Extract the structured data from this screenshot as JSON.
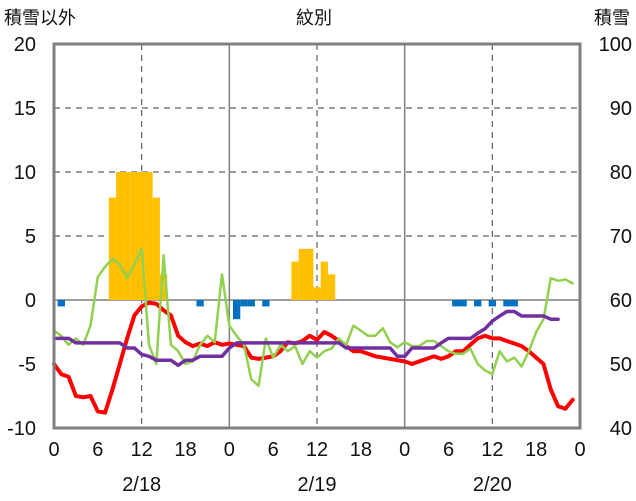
{
  "chart_data": {
    "type": "bar+line",
    "title": "紋別",
    "ylabel_left": "積雪以外",
    "ylabel_right": "積雪",
    "ylim_left": [
      -10,
      20
    ],
    "ylim_right": [
      40,
      100
    ],
    "left_ticks": [
      "20",
      "15",
      "10",
      "5",
      "0",
      "-5",
      "-10"
    ],
    "right_ticks": [
      "100",
      "90",
      "80",
      "70",
      "60",
      "50",
      "40"
    ],
    "x_range_hours": [
      0,
      72
    ],
    "x_tick_hours": [
      0,
      6,
      12,
      18,
      24,
      30,
      36,
      42,
      48,
      54,
      60,
      66,
      72
    ],
    "x_tick_labels": [
      "0",
      "6",
      "12",
      "18",
      "0",
      "6",
      "12",
      "18",
      "0",
      "6",
      "12",
      "18",
      "0"
    ],
    "day_labels": [
      {
        "hour": 12,
        "label": "2/18"
      },
      {
        "hour": 36,
        "label": "2/19"
      },
      {
        "hour": 60,
        "label": "2/20"
      }
    ],
    "day_boundaries": [
      24,
      48
    ],
    "dashed_x_hours": [
      12,
      36,
      60
    ],
    "dashed_y_values": [
      5,
      10,
      15
    ],
    "series": [
      {
        "name": "snowfall",
        "kind": "bar",
        "axis": "left",
        "color": "#ffc000",
        "points": [
          [
            8,
            8
          ],
          [
            9,
            10
          ],
          [
            10,
            10
          ],
          [
            11,
            10
          ],
          [
            12,
            10
          ],
          [
            13,
            10
          ],
          [
            14,
            8
          ],
          [
            15,
            2
          ],
          [
            33,
            3
          ],
          [
            34,
            4
          ],
          [
            35,
            4
          ],
          [
            36,
            1
          ],
          [
            37,
            3
          ],
          [
            38,
            2
          ]
        ]
      },
      {
        "name": "precipitation",
        "kind": "bar",
        "axis": "left",
        "color": "#0070c0",
        "points": [
          [
            1,
            -0.5
          ],
          [
            20,
            -0.5
          ],
          [
            25,
            -1.5
          ],
          [
            26,
            -0.5
          ],
          [
            27,
            -0.5
          ],
          [
            29,
            -0.5
          ],
          [
            55,
            -0.5
          ],
          [
            56,
            -0.5
          ],
          [
            58,
            -0.5
          ],
          [
            60,
            -0.5
          ],
          [
            62,
            -0.5
          ],
          [
            63,
            -0.5
          ]
        ]
      },
      {
        "name": "temperature",
        "kind": "line",
        "axis": "left",
        "color": "#ff0000",
        "points": [
          [
            0,
            -5
          ],
          [
            1,
            -5.8
          ],
          [
            2,
            -6
          ],
          [
            3,
            -7.5
          ],
          [
            4,
            -7.6
          ],
          [
            5,
            -7.5
          ],
          [
            6,
            -8.7
          ],
          [
            7,
            -8.8
          ],
          [
            8,
            -7
          ],
          [
            9,
            -5
          ],
          [
            10,
            -3
          ],
          [
            11,
            -1.2
          ],
          [
            12,
            -0.5
          ],
          [
            13,
            -0.2
          ],
          [
            14,
            -0.3
          ],
          [
            15,
            -0.8
          ],
          [
            16,
            -1.2
          ],
          [
            17,
            -2.8
          ],
          [
            18,
            -3.3
          ],
          [
            19,
            -3.6
          ],
          [
            20,
            -3.4
          ],
          [
            21,
            -3.6
          ],
          [
            22,
            -3.3
          ],
          [
            23,
            -3.5
          ],
          [
            24,
            -3.4
          ],
          [
            25,
            -3.5
          ],
          [
            26,
            -3.6
          ],
          [
            27,
            -4.5
          ],
          [
            28,
            -4.6
          ],
          [
            29,
            -4.5
          ],
          [
            30,
            -4.4
          ],
          [
            31,
            -4
          ],
          [
            32,
            -3.3
          ],
          [
            33,
            -3.4
          ],
          [
            34,
            -3.2
          ],
          [
            35,
            -2.8
          ],
          [
            36,
            -3.1
          ],
          [
            37,
            -2.5
          ],
          [
            38,
            -2.8
          ],
          [
            39,
            -3.2
          ],
          [
            40,
            -3.6
          ],
          [
            41,
            -4
          ],
          [
            42,
            -4
          ],
          [
            43,
            -4.2
          ],
          [
            44,
            -4.4
          ],
          [
            45,
            -4.5
          ],
          [
            46,
            -4.6
          ],
          [
            47,
            -4.7
          ],
          [
            48,
            -4.8
          ],
          [
            49,
            -5
          ],
          [
            50,
            -4.8
          ],
          [
            51,
            -4.6
          ],
          [
            52,
            -4.4
          ],
          [
            53,
            -4.6
          ],
          [
            54,
            -4.4
          ],
          [
            55,
            -4
          ],
          [
            56,
            -4
          ],
          [
            57,
            -3.5
          ],
          [
            58,
            -3
          ],
          [
            59,
            -2.8
          ],
          [
            60,
            -3
          ],
          [
            61,
            -3
          ],
          [
            62,
            -3.2
          ],
          [
            63,
            -3.4
          ],
          [
            64,
            -3.6
          ],
          [
            65,
            -4
          ],
          [
            66,
            -4.5
          ],
          [
            67,
            -5
          ],
          [
            68,
            -7
          ],
          [
            69,
            -8.3
          ],
          [
            70,
            -8.5
          ],
          [
            71,
            -7.8
          ]
        ]
      },
      {
        "name": "wind",
        "kind": "line",
        "axis": "left",
        "color": "#92d050",
        "points": [
          [
            0,
            -2.4
          ],
          [
            1,
            -2.8
          ],
          [
            2,
            -3.5
          ],
          [
            3,
            -3
          ],
          [
            4,
            -3.5
          ],
          [
            5,
            -2
          ],
          [
            6,
            1.8
          ],
          [
            7,
            2.6
          ],
          [
            8,
            3.2
          ],
          [
            9,
            2.8
          ],
          [
            10,
            1.7
          ],
          [
            11,
            2.8
          ],
          [
            12,
            4
          ],
          [
            13,
            -3.5
          ],
          [
            14,
            -5
          ],
          [
            15,
            3.5
          ],
          [
            16,
            -3.5
          ],
          [
            17,
            -4
          ],
          [
            18,
            -5
          ],
          [
            19,
            -4.8
          ],
          [
            20,
            -3.5
          ],
          [
            21,
            -2.8
          ],
          [
            22,
            -3.3
          ],
          [
            23,
            2
          ],
          [
            24,
            -2
          ],
          [
            25,
            -2.8
          ],
          [
            26,
            -3.5
          ],
          [
            27,
            -6.2
          ],
          [
            28,
            -6.7
          ],
          [
            29,
            -3
          ],
          [
            30,
            -4.5
          ],
          [
            31,
            -3.5
          ],
          [
            32,
            -4
          ],
          [
            33,
            -3.6
          ],
          [
            34,
            -5
          ],
          [
            35,
            -4
          ],
          [
            36,
            -4.5
          ],
          [
            37,
            -4
          ],
          [
            38,
            -3.8
          ],
          [
            39,
            -3
          ],
          [
            40,
            -3.5
          ],
          [
            41,
            -2
          ],
          [
            42,
            -2.4
          ],
          [
            43,
            -2.8
          ],
          [
            44,
            -2.8
          ],
          [
            45,
            -2.2
          ],
          [
            46,
            -3.3
          ],
          [
            47,
            -3.7
          ],
          [
            48,
            -3.3
          ],
          [
            49,
            -3.6
          ],
          [
            50,
            -3.6
          ],
          [
            51,
            -3.2
          ],
          [
            52,
            -3.2
          ],
          [
            53,
            -3.6
          ],
          [
            54,
            -4
          ],
          [
            55,
            -4.2
          ],
          [
            56,
            -4.2
          ],
          [
            57,
            -3.8
          ],
          [
            58,
            -5
          ],
          [
            59,
            -5.5
          ],
          [
            60,
            -5.8
          ],
          [
            61,
            -4
          ],
          [
            62,
            -4.8
          ],
          [
            63,
            -4.5
          ],
          [
            64,
            -5.2
          ],
          [
            65,
            -4
          ],
          [
            66,
            -2.5
          ],
          [
            67,
            -1.5
          ],
          [
            68,
            1.7
          ],
          [
            69,
            1.5
          ],
          [
            70,
            1.6
          ],
          [
            71,
            1.3
          ]
        ]
      },
      {
        "name": "snow_depth",
        "kind": "line",
        "axis": "right",
        "color": "#7030a0",
        "points": [
          [
            0,
            54
          ],
          [
            1,
            54
          ],
          [
            2,
            54
          ],
          [
            3,
            53.3
          ],
          [
            4,
            53.3
          ],
          [
            5,
            53.3
          ],
          [
            6,
            53.3
          ],
          [
            7,
            53.3
          ],
          [
            8,
            53.3
          ],
          [
            9,
            53.3
          ],
          [
            10,
            52.5
          ],
          [
            11,
            52.5
          ],
          [
            12,
            51.5
          ],
          [
            13,
            51.2
          ],
          [
            14,
            50.6
          ],
          [
            15,
            50.6
          ],
          [
            16,
            50.6
          ],
          [
            17,
            49.8
          ],
          [
            18,
            50.6
          ],
          [
            19,
            50.6
          ],
          [
            20,
            51.2
          ],
          [
            21,
            51.2
          ],
          [
            22,
            51.2
          ],
          [
            23,
            51.2
          ],
          [
            24,
            52.5
          ],
          [
            25,
            53.3
          ],
          [
            26,
            53.3
          ],
          [
            27,
            53.3
          ],
          [
            28,
            53.3
          ],
          [
            29,
            53.3
          ],
          [
            30,
            53.3
          ],
          [
            31,
            53.3
          ],
          [
            32,
            53.3
          ],
          [
            33,
            53.3
          ],
          [
            34,
            53.3
          ],
          [
            35,
            53.3
          ],
          [
            36,
            53.3
          ],
          [
            37,
            53.3
          ],
          [
            38,
            53.3
          ],
          [
            39,
            53.3
          ],
          [
            40,
            52.5
          ],
          [
            41,
            52.5
          ],
          [
            42,
            52.5
          ],
          [
            43,
            52.5
          ],
          [
            44,
            52.5
          ],
          [
            45,
            52.5
          ],
          [
            46,
            52.5
          ],
          [
            47,
            51.2
          ],
          [
            48,
            51.2
          ],
          [
            49,
            52.5
          ],
          [
            50,
            52.5
          ],
          [
            51,
            52.5
          ],
          [
            52,
            52.5
          ],
          [
            53,
            53.3
          ],
          [
            54,
            54
          ],
          [
            55,
            54
          ],
          [
            56,
            54
          ],
          [
            57,
            54
          ],
          [
            58,
            54.8
          ],
          [
            59,
            55.5
          ],
          [
            60,
            56.7
          ],
          [
            61,
            57.5
          ],
          [
            62,
            58.2
          ],
          [
            63,
            58.2
          ],
          [
            64,
            57.5
          ],
          [
            65,
            57.5
          ],
          [
            66,
            57.5
          ],
          [
            67,
            57.5
          ],
          [
            68,
            57
          ],
          [
            69,
            57
          ]
        ]
      }
    ]
  }
}
